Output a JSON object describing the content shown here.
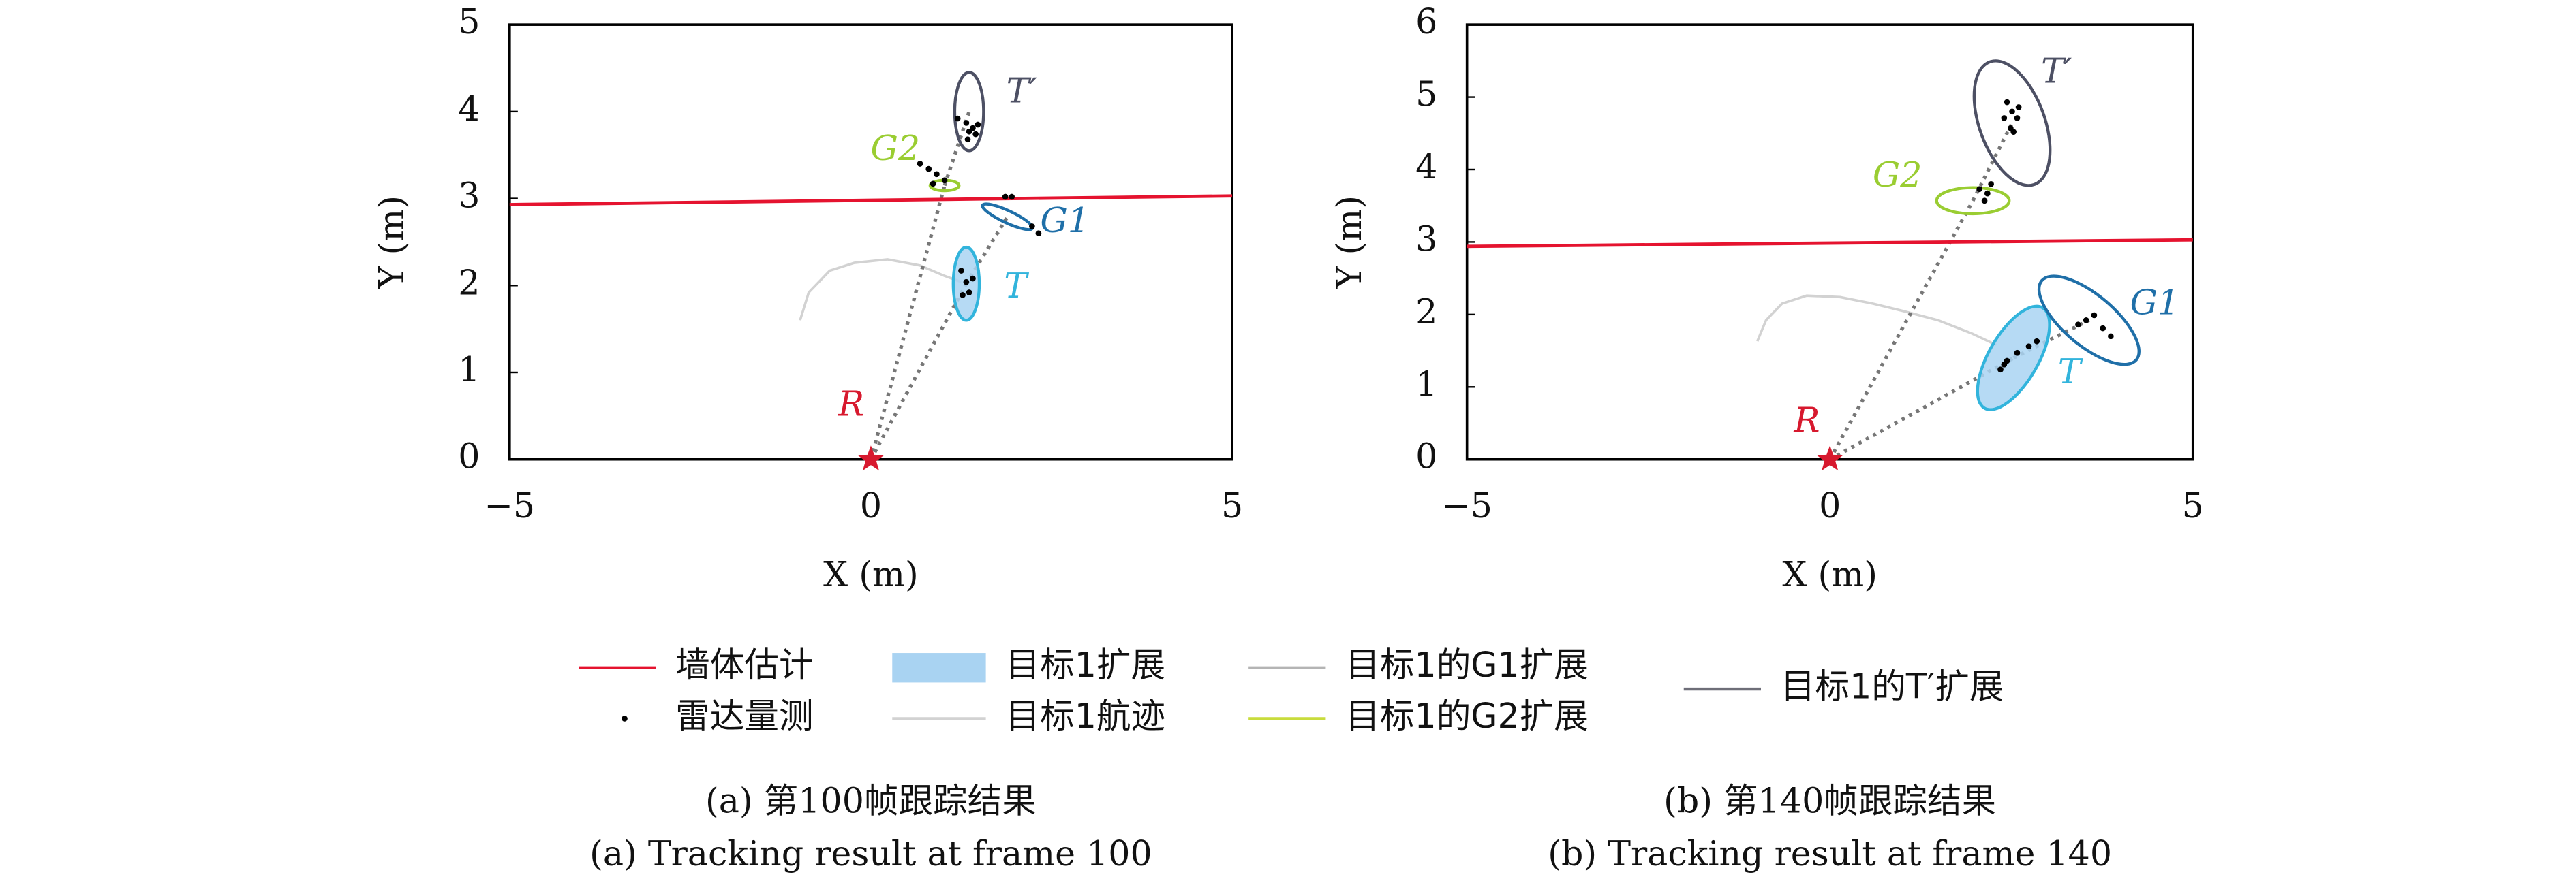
{
  "chart_data": [
    {
      "type": "scatter",
      "x_label": "X (m)",
      "y_label": "Y (m)",
      "xlim": [
        -5,
        5
      ],
      "ylim": [
        0,
        5
      ],
      "xticks": [
        {
          "value": -5,
          "label": "−5"
        },
        0,
        5
      ],
      "yticks": [
        0,
        1,
        2,
        3,
        4,
        5
      ],
      "wall": {
        "x": [
          -5,
          5
        ],
        "y": [
          2.93,
          3.03
        ],
        "color": "#e5132f"
      },
      "track": {
        "x": [
          -0.98,
          -0.86,
          -0.57,
          -0.23,
          0.23,
          0.68,
          1.02,
          1.25
        ],
        "y": [
          1.6,
          1.92,
          2.17,
          2.26,
          2.3,
          2.23,
          2.11,
          2.04
        ],
        "color": "#d2d2d2"
      },
      "measurements": {
        "color": "#000000",
        "x": [
          1.32,
          1.36,
          1.41,
          1.45,
          1.34,
          1.2,
          1.48,
          0.68,
          0.8,
          0.91,
          1.02,
          0.86,
          1.86,
          1.95,
          2.23,
          2.32,
          1.25,
          1.32,
          1.36,
          1.27,
          1.41
        ],
        "y": [
          3.87,
          3.77,
          3.81,
          3.74,
          3.68,
          3.92,
          3.85,
          3.4,
          3.34,
          3.28,
          3.21,
          3.17,
          3.02,
          3.02,
          2.68,
          2.6,
          2.17,
          2.04,
          1.92,
          1.89,
          2.08
        ]
      },
      "radar": {
        "label": "R",
        "x": 0,
        "y": 0,
        "color": "#d7192e"
      },
      "ellipses": [
        {
          "label": "T",
          "cx": 1.32,
          "cy": 2.02,
          "rx": 0.18,
          "ry": 0.42,
          "angle": 0,
          "color": "#32b4dc",
          "fill": "#a9d3f2"
        },
        {
          "label": "T′",
          "cx": 1.36,
          "cy": 4.0,
          "rx": 0.2,
          "ry": 0.45,
          "angle": 0,
          "color": "#4d5064"
        },
        {
          "label": "G1",
          "cx": 1.89,
          "cy": 2.79,
          "rx": 0.38,
          "ry": 0.07,
          "angle": 25,
          "color": "#1f6fa8"
        },
        {
          "label": "G2",
          "cx": 1.02,
          "cy": 3.15,
          "rx": 0.2,
          "ry": 0.06,
          "angle": 0,
          "color": "#9acd32"
        }
      ]
    },
    {
      "type": "scatter",
      "x_label": "X (m)",
      "y_label": "Y (m)",
      "xlim": [
        -5,
        5
      ],
      "ylim": [
        0,
        6
      ],
      "xticks": [
        {
          "value": -5,
          "label": "−5"
        },
        0,
        5
      ],
      "yticks": [
        0,
        1,
        2,
        3,
        4,
        5,
        6
      ],
      "wall": {
        "x": [
          -5,
          5
        ],
        "y": [
          2.94,
          3.03
        ],
        "color": "#e5132f"
      },
      "track": {
        "x": [
          -1.0,
          -0.88,
          -0.66,
          -0.32,
          0.14,
          0.59,
          1.04,
          1.49,
          1.95,
          2.29
        ],
        "y": [
          1.63,
          1.92,
          2.15,
          2.26,
          2.24,
          2.15,
          2.04,
          1.92,
          1.74,
          1.58
        ],
        "color": "#d2d2d2"
      },
      "measurements": {
        "color": "#000000",
        "x": [
          2.44,
          2.51,
          2.58,
          2.49,
          2.53,
          2.4,
          2.6,
          2.06,
          2.17,
          2.22,
          2.13,
          2.35,
          2.44,
          2.58,
          2.74,
          2.85,
          2.4,
          3.53,
          3.64,
          3.76,
          3.87,
          3.42
        ],
        "y": [
          4.93,
          4.8,
          4.71,
          4.57,
          4.52,
          4.71,
          4.86,
          3.73,
          3.67,
          3.8,
          3.57,
          1.24,
          1.36,
          1.47,
          1.56,
          1.63,
          1.31,
          1.92,
          1.99,
          1.81,
          1.7,
          1.86
        ]
      },
      "radar": {
        "label": "R",
        "x": 0,
        "y": 0,
        "color": "#d7192e"
      },
      "ellipses": [
        {
          "label": "T",
          "cx": 2.53,
          "cy": 1.4,
          "rx": 0.34,
          "ry": 0.8,
          "angle": 30,
          "color": "#32b4dc",
          "fill": "#a9d3f2"
        },
        {
          "label": "T′",
          "cx": 2.51,
          "cy": 4.64,
          "rx": 0.45,
          "ry": 0.9,
          "angle": -20,
          "color": "#4d5064"
        },
        {
          "label": "G1",
          "cx": 3.57,
          "cy": 1.92,
          "rx": 0.85,
          "ry": 0.35,
          "angle": 40,
          "color": "#1f6fa8"
        },
        {
          "label": "G2",
          "cx": 1.97,
          "cy": 3.57,
          "rx": 0.5,
          "ry": 0.18,
          "angle": 0,
          "color": "#9acd32"
        }
      ]
    }
  ],
  "legend": [
    {
      "label": "墙体估计",
      "kind": "line",
      "color": "#e5132f"
    },
    {
      "label": "目标1扩展",
      "kind": "area",
      "color": "#a9d3f2"
    },
    {
      "label": "目标1的G1扩展",
      "kind": "line",
      "color": "#b4b4b4"
    },
    {
      "label": "目标1的T′扩展",
      "kind": "line",
      "color": "#6e6e78"
    },
    {
      "label": "雷达量测",
      "kind": "dot",
      "color": "#000000"
    },
    {
      "label": "目标1航迹",
      "kind": "line",
      "color": "#d2d2d2"
    },
    {
      "label": "目标1的G2扩展",
      "kind": "line",
      "color": "#c8dc3c"
    }
  ],
  "captions": [
    [
      "(a) 第100帧跟踪结果",
      "(a) Tracking result at frame 100"
    ],
    [
      "(b) 第140帧跟踪结果",
      "(b) Tracking result at frame 140"
    ]
  ]
}
